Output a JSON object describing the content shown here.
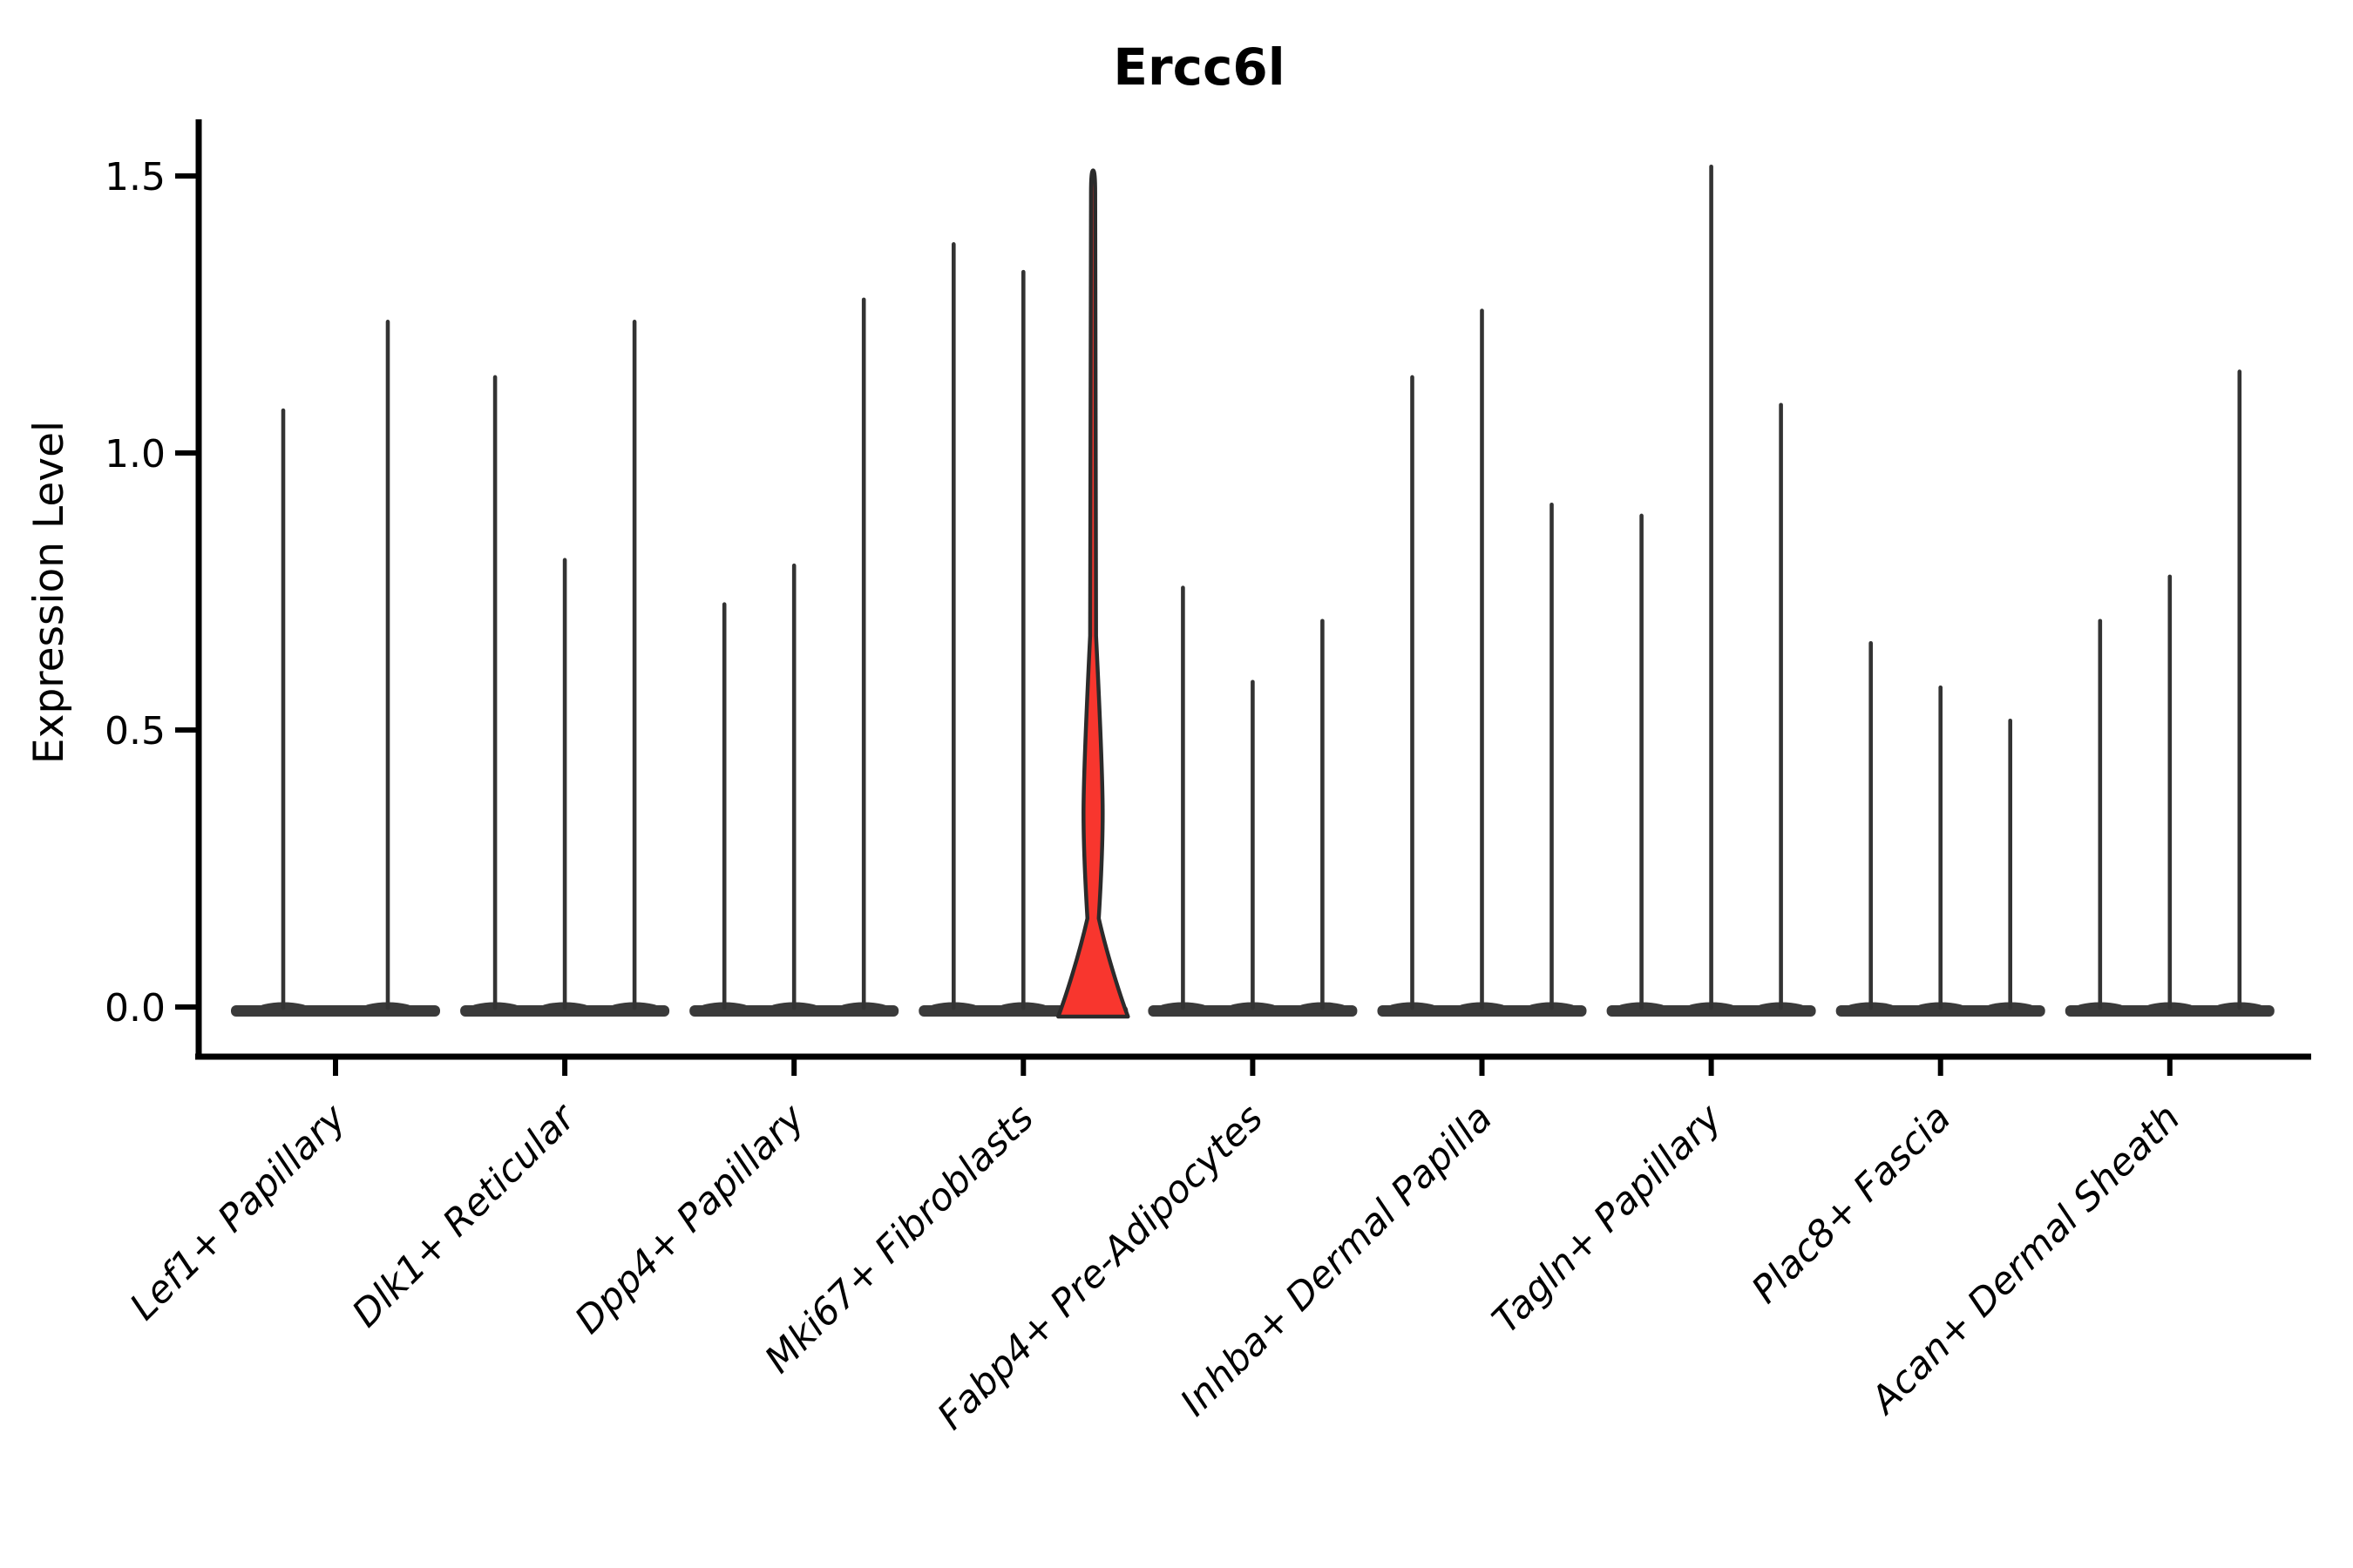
{
  "title": "Ercc6l",
  "y_axis": {
    "label": "Expression Level",
    "ticks": [
      {
        "value": 0.0,
        "label": "0.0"
      },
      {
        "value": 0.5,
        "label": "0.5"
      },
      {
        "value": 1.0,
        "label": "1.0"
      },
      {
        "value": 1.5,
        "label": "1.5"
      }
    ]
  },
  "colors": {
    "background": "#ffffff",
    "axis": "#000000",
    "violin_stroke": "#333333",
    "baseline_fill": "#3a3a3a",
    "highlight_fill": "#f8362e",
    "highlight_stroke": "#2b2b2b"
  },
  "chart_data": {
    "type": "violin",
    "title": "Ercc6l",
    "xlabel": "",
    "ylabel": "Expression Level",
    "ylim": [
      0,
      1.58
    ],
    "yticks": [
      0.0,
      0.5,
      1.0,
      1.5
    ],
    "grid": false,
    "legend": "none",
    "description": "Single-cell expression violin plot; nearly all density at 0 with thin spikes to per-violin maxima; one red highlighted violin (3rd violin of Mki67+ Fibroblasts) with visible density bulge.",
    "groups": [
      {
        "label": "Lef1+ Papillary",
        "violin_max": [
          1.08,
          1.24
        ]
      },
      {
        "label": "Dlk1+ Reticular",
        "violin_max": [
          1.14,
          0.81,
          1.24
        ]
      },
      {
        "label": "Dpp4+ Papillary",
        "violin_max": [
          0.73,
          0.8,
          1.28
        ]
      },
      {
        "label": "Mki67+ Fibroblasts",
        "violin_max": [
          1.38,
          1.33,
          1.51
        ],
        "highlight_index": 2,
        "highlight_shape": {
          "max": 1.51,
          "base_top": 0.16,
          "bulge_bottom": 0.22,
          "bulge_peak": 0.35,
          "bulge_top": 0.67
        }
      },
      {
        "label": "Fabp4+ Pre-Adipocytes",
        "violin_max": [
          0.76,
          0.59,
          0.7
        ]
      },
      {
        "label": "Inhba+ Dermal Papilla",
        "violin_max": [
          1.14,
          1.26,
          0.91
        ]
      },
      {
        "label": "Tagln+ Papillary",
        "violin_max": [
          0.89,
          1.52,
          1.09
        ]
      },
      {
        "label": "Plac8+ Fascia",
        "violin_max": [
          0.66,
          0.58,
          0.52
        ]
      },
      {
        "label": "Acan+ Dermal Sheath",
        "violin_max": [
          0.7,
          0.78,
          1.15
        ]
      }
    ]
  }
}
